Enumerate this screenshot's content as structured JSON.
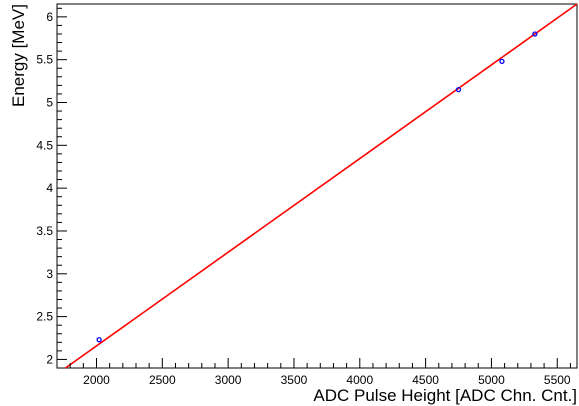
{
  "chart_data": {
    "type": "scatter",
    "title": "",
    "xlabel": "ADC Pulse Height [ADC Chn. Cnt.]",
    "ylabel": "Energy [MeV]",
    "xlim": [
      1700,
      5650
    ],
    "ylim": [
      1.9,
      6.15
    ],
    "x_ticks": [
      2000,
      2500,
      3000,
      3500,
      4000,
      4500,
      5000,
      5500
    ],
    "y_ticks": [
      2,
      2.5,
      3,
      3.5,
      4,
      4.5,
      5,
      5.5,
      6
    ],
    "grid": false,
    "legend": "none",
    "points": {
      "x": [
        2020,
        4750,
        5080,
        5330
      ],
      "y": [
        2.23,
        5.15,
        5.48,
        5.8
      ],
      "color": "#0000ff"
    },
    "fit_line": {
      "type": "line",
      "x": [
        1700,
        5650
      ],
      "y": [
        1.83,
        6.15
      ],
      "color": "#ff0000"
    }
  }
}
